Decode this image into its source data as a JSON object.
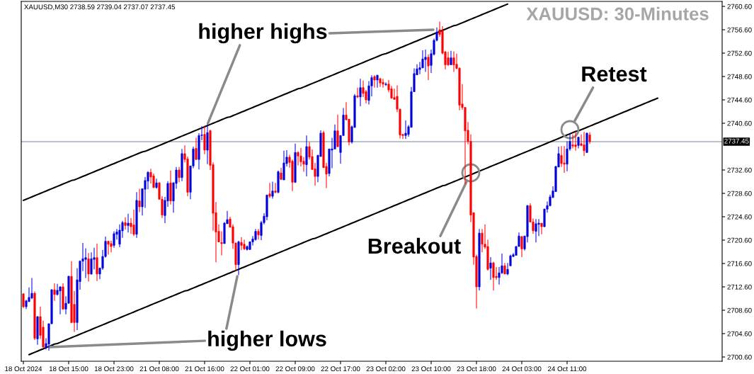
{
  "chart_data": {
    "type": "candlestick",
    "title": "XAUUSD: 30-Minutes",
    "subtitle": "XAUUSD,M30 2738.59 2739.04 2737.07 2737.45",
    "categories": [
      "18 Oct 2024",
      null,
      null,
      null,
      null,
      null,
      null,
      null,
      null,
      null,
      null,
      null,
      null,
      null,
      null,
      null,
      "18 Oct 15:00",
      null,
      null,
      null,
      null,
      null,
      null,
      null,
      null,
      null,
      null,
      null,
      null,
      null,
      null,
      null,
      "18 Oct 23:00",
      null,
      null,
      null,
      null,
      null,
      null,
      null,
      null,
      null,
      null,
      null,
      null,
      null,
      null,
      null,
      "21 Oct 08:00",
      null,
      null,
      null,
      null,
      null,
      null,
      null,
      null,
      null,
      null,
      null,
      null,
      null,
      null,
      null,
      "21 Oct 16:00",
      null,
      null,
      null,
      null,
      null,
      null,
      null,
      null,
      null,
      null,
      null,
      null,
      null,
      null,
      null,
      "22 Oct 01:00",
      null,
      null,
      null,
      null,
      null,
      null,
      null,
      null,
      null,
      null,
      null,
      null,
      null,
      null,
      null,
      "22 Oct 09:00",
      null,
      null,
      null,
      null,
      null,
      null,
      null,
      null,
      null,
      null,
      null,
      null,
      null,
      null,
      null,
      "22 Oct 17:00",
      null,
      null,
      null,
      null,
      null,
      null,
      null,
      null,
      null,
      null,
      null,
      null,
      null,
      null,
      null,
      "23 Oct 02:00",
      null,
      null,
      null,
      null,
      null,
      null,
      null,
      null,
      null,
      null,
      null,
      null,
      null,
      null,
      null,
      "23 Oct 10:00",
      null,
      null,
      null,
      null,
      null,
      null,
      null,
      null,
      null,
      null,
      null,
      null,
      null,
      null,
      null,
      "23 Oct 18:00",
      null,
      null,
      null,
      null,
      null,
      null,
      null,
      null,
      null,
      null,
      null,
      null,
      null,
      null,
      null,
      "24 Oct 03:00",
      null,
      null,
      null,
      null,
      null,
      null,
      null,
      null,
      null,
      null,
      null,
      null,
      null,
      null,
      null,
      "24 Oct 11:00",
      null,
      null,
      null,
      null,
      null,
      null,
      null,
      null,
      null,
      null,
      null,
      null,
      null,
      null,
      null,
      null,
      null,
      null,
      null,
      null,
      null,
      null,
      null,
      null,
      null,
      null,
      null,
      null,
      null,
      null,
      null,
      null
    ],
    "ohlc": [
      [
        2711.4,
        2711.5,
        2709.0,
        2709.2
      ],
      [
        2709.2,
        2710.4,
        2708.8,
        2710.2
      ],
      [
        2710.1,
        2712.5,
        2710.0,
        2710.8
      ],
      [
        2710.7,
        2714.1,
        2710.5,
        2711.5
      ],
      [
        2711.5,
        2711.8,
        2703.5,
        2703.8
      ],
      [
        2703.7,
        2707.6,
        2702.7,
        2707.5
      ],
      [
        2707.5,
        2709.2,
        2703.7,
        2704.3
      ],
      [
        2705.7,
        2706.8,
        2702.2,
        2702.3
      ],
      [
        2702.3,
        2703.8,
        2701.9,
        2702.9
      ],
      [
        2702.8,
        2706.3,
        2701.7,
        2706.3
      ],
      [
        2706.3,
        2712.2,
        2706.2,
        2712.1
      ],
      [
        2712.1,
        2713.2,
        2710.2,
        2711.3
      ],
      [
        2711.3,
        2713.1,
        2711.1,
        2712.0
      ],
      [
        2711.9,
        2712.7,
        2707.9,
        2712.6
      ],
      [
        2712.6,
        2713.2,
        2708.7,
        2708.8
      ],
      [
        2708.8,
        2711.0,
        2707.9,
        2709.8
      ],
      [
        2709.8,
        2714.5,
        2709.7,
        2714.4
      ],
      [
        2714.4,
        2717.0,
        2706.4,
        2706.5
      ],
      [
        2709.6,
        2711.9,
        2704.9,
        2706.5
      ],
      [
        2706.5,
        2715.8,
        2705.2,
        2713.8
      ],
      [
        2713.5,
        2717.1,
        2712.1,
        2717.0
      ],
      [
        2717.0,
        2720.1,
        2715.3,
        2717.4
      ],
      [
        2717.3,
        2719.2,
        2714.1,
        2717.6
      ],
      [
        2717.4,
        2718.4,
        2713.5,
        2714.8
      ],
      [
        2714.8,
        2718.5,
        2714.7,
        2717.4
      ],
      [
        2717.3,
        2719.3,
        2715.6,
        2717.6
      ],
      [
        2717.6,
        2720.0,
        2713.6,
        2714.8
      ],
      [
        2714.8,
        2715.9,
        2713.9,
        2715.8
      ],
      [
        2715.8,
        2718.9,
        2715.5,
        2717.8
      ],
      [
        2717.8,
        2721.2,
        2717.6,
        2720.4
      ],
      [
        2720.4,
        2720.5,
        2718.1,
        2719.9
      ],
      [
        2720.0,
        2720.5,
        2718.5,
        2719.5
      ],
      [
        2719.7,
        2722.1,
        2719.3,
        2721.7
      ],
      [
        2721.6,
        2722.5,
        2720.7,
        2722.0
      ],
      [
        2719.9,
        2723.3,
        2719.4,
        2722.3
      ],
      [
        2722.2,
        2723.9,
        2721.0,
        2723.6
      ],
      [
        2723.6,
        2724.5,
        2722.4,
        2723.1
      ],
      [
        2723.1,
        2725.1,
        2721.9,
        2723.5
      ],
      [
        2723.5,
        2724.4,
        2721.7,
        2722.9
      ],
      [
        2723.2,
        2725.8,
        2721.3,
        2721.6
      ],
      [
        2721.6,
        2728.8,
        2721.0,
        2727.4
      ],
      [
        2727.3,
        2729.4,
        2725.4,
        2726.3
      ],
      [
        2726.3,
        2729.4,
        2724.8,
        2729.4
      ],
      [
        2729.3,
        2731.4,
        2726.1,
        2730.8
      ],
      [
        2730.7,
        2732.4,
        2729.3,
        2732.2
      ],
      [
        2732.2,
        2732.8,
        2730.3,
        2731.4
      ],
      [
        2731.6,
        2732.0,
        2729.5,
        2729.6
      ],
      [
        2729.6,
        2731.1,
        2729.4,
        2730.4
      ],
      [
        2730.4,
        2730.5,
        2727.5,
        2727.6
      ],
      [
        2727.6,
        2728.1,
        2724.4,
        2724.9
      ],
      [
        2724.8,
        2728.0,
        2723.5,
        2727.4
      ],
      [
        2727.3,
        2730.7,
        2726.3,
        2730.3
      ],
      [
        2730.4,
        2732.5,
        2726.7,
        2727.3
      ],
      [
        2727.3,
        2730.5,
        2725.3,
        2730.4
      ],
      [
        2730.3,
        2733.1,
        2729.4,
        2732.6
      ],
      [
        2732.6,
        2733.1,
        2730.5,
        2731.3
      ],
      [
        2731.3,
        2736.2,
        2730.7,
        2735.4
      ],
      [
        2735.4,
        2736.8,
        2733.9,
        2734.4
      ],
      [
        2734.5,
        2734.9,
        2728.1,
        2728.8
      ],
      [
        2728.8,
        2733.3,
        2727.6,
        2733.3
      ],
      [
        2733.3,
        2736.6,
        2732.9,
        2736.2
      ],
      [
        2736.3,
        2738.1,
        2734.3,
        2734.4
      ],
      [
        2734.4,
        2738.9,
        2732.7,
        2738.5
      ],
      [
        2738.5,
        2740.1,
        2737.7,
        2738.6
      ],
      [
        2738.7,
        2740.2,
        2735.3,
        2736.0
      ],
      [
        2736.0,
        2740.4,
        2733.6,
        2739.0
      ],
      [
        2739.3,
        2739.5,
        2732.6,
        2733.4
      ],
      [
        2733.5,
        2733.9,
        2722.2,
        2725.2
      ],
      [
        2725.3,
        2727.1,
        2716.8,
        2722.0
      ],
      [
        2722.1,
        2723.3,
        2720.2,
        2720.3
      ],
      [
        2720.2,
        2722.1,
        2718.0,
        2720.0
      ],
      [
        2720.0,
        2723.7,
        2720.0,
        2723.5
      ],
      [
        2723.4,
        2725.6,
        2723.4,
        2724.1
      ],
      [
        2724.2,
        2724.6,
        2722.8,
        2722.8
      ],
      [
        2722.9,
        2723.3,
        2719.1,
        2720.1
      ],
      [
        2720.1,
        2720.2,
        2715.4,
        2716.4
      ],
      [
        2716.4,
        2720.5,
        2714.6,
        2720.3
      ],
      [
        2720.2,
        2721.1,
        2718.9,
        2719.7
      ],
      [
        2719.9,
        2720.7,
        2718.9,
        2719.1
      ],
      [
        2719.0,
        2719.7,
        2718.8,
        2719.5
      ],
      [
        2719.0,
        2720.4,
        2718.9,
        2720.3
      ],
      [
        2720.3,
        2721.3,
        2719.7,
        2720.8
      ],
      [
        2720.7,
        2722.5,
        2720.5,
        2722.1
      ],
      [
        2722.1,
        2722.5,
        2720.7,
        2721.5
      ],
      [
        2721.4,
        2723.9,
        2720.6,
        2723.6
      ],
      [
        2723.6,
        2725.2,
        2723.3,
        2724.7
      ],
      [
        2724.6,
        2728.4,
        2724.0,
        2728.3
      ],
      [
        2728.5,
        2730.4,
        2727.8,
        2728.1
      ],
      [
        2728.1,
        2730.6,
        2727.7,
        2729.0
      ],
      [
        2729.0,
        2730.4,
        2728.6,
        2728.8
      ],
      [
        2728.8,
        2732.5,
        2728.6,
        2732.3
      ],
      [
        2732.1,
        2733.0,
        2730.9,
        2731.0
      ],
      [
        2730.9,
        2735.9,
        2730.9,
        2733.8
      ],
      [
        2733.7,
        2736.0,
        2733.2,
        2734.8
      ],
      [
        2734.8,
        2735.2,
        2733.0,
        2733.9
      ],
      [
        2734.1,
        2734.4,
        2729.0,
        2730.5
      ],
      [
        2730.5,
        2737.1,
        2730.4,
        2735.6
      ],
      [
        2735.6,
        2735.8,
        2733.4,
        2735.0
      ],
      [
        2735.0,
        2736.4,
        2733.2,
        2734.0
      ],
      [
        2734.1,
        2734.8,
        2732.3,
        2733.6
      ],
      [
        2733.5,
        2738.5,
        2731.5,
        2736.6
      ],
      [
        2736.6,
        2737.4,
        2734.4,
        2734.8
      ],
      [
        2734.9,
        2736.1,
        2732.6,
        2732.7
      ],
      [
        2732.8,
        2733.8,
        2729.9,
        2731.5
      ],
      [
        2731.5,
        2735.2,
        2730.5,
        2735.1
      ],
      [
        2734.9,
        2739.4,
        2734.9,
        2738.9
      ],
      [
        2739.0,
        2739.3,
        2733.0,
        2733.0
      ],
      [
        2733.2,
        2733.8,
        2729.5,
        2731.9
      ],
      [
        2732.0,
        2736.2,
        2731.5,
        2736.2
      ],
      [
        2736.0,
        2738.1,
        2732.9,
        2736.2
      ],
      [
        2736.2,
        2740.4,
        2736.1,
        2739.3
      ],
      [
        2739.3,
        2742.1,
        2736.5,
        2736.6
      ],
      [
        2735.6,
        2738.5,
        2733.7,
        2738.5
      ],
      [
        2738.5,
        2743.2,
        2738.5,
        2742.0
      ],
      [
        2742.0,
        2744.2,
        2741.1,
        2741.2
      ],
      [
        2741.3,
        2741.3,
        2736.8,
        2737.4
      ],
      [
        2737.4,
        2740.2,
        2737.1,
        2740.0
      ],
      [
        2739.9,
        2745.6,
        2739.8,
        2745.3
      ],
      [
        2745.3,
        2746.7,
        2744.9,
        2745.1
      ],
      [
        2745.1,
        2748.2,
        2743.5,
        2746.7
      ],
      [
        2746.7,
        2747.9,
        2745.1,
        2745.7
      ],
      [
        2746.0,
        2746.3,
        2744.0,
        2744.6
      ],
      [
        2744.5,
        2747.8,
        2743.8,
        2747.0
      ],
      [
        2747.0,
        2748.8,
        2745.2,
        2748.4
      ],
      [
        2748.6,
        2748.8,
        2746.7,
        2748.0
      ],
      [
        2748.0,
        2748.9,
        2746.7,
        2748.8
      ],
      [
        2748.2,
        2748.4,
        2746.8,
        2747.5
      ],
      [
        2747.6,
        2748.2,
        2746.7,
        2747.3
      ],
      [
        2747.2,
        2747.6,
        2747.0,
        2747.3
      ],
      [
        2747.3,
        2748.0,
        2745.9,
        2746.3
      ],
      [
        2746.5,
        2747.0,
        2744.8,
        2744.9
      ],
      [
        2745.0,
        2746.5,
        2744.6,
        2744.7
      ],
      [
        2745.2,
        2747.1,
        2742.5,
        2743.0
      ],
      [
        2743.0,
        2743.1,
        2738.0,
        2738.6
      ],
      [
        2738.7,
        2738.7,
        2737.9,
        2738.5
      ],
      [
        2738.5,
        2741.1,
        2737.9,
        2738.9
      ],
      [
        2738.7,
        2740.3,
        2738.3,
        2740.0
      ],
      [
        2739.9,
        2746.8,
        2739.9,
        2746.0
      ],
      [
        2746.0,
        2750.0,
        2746.0,
        2749.1
      ],
      [
        2748.9,
        2750.7,
        2748.8,
        2749.9
      ],
      [
        2749.8,
        2751.1,
        2749.0,
        2750.1
      ],
      [
        2750.1,
        2753.1,
        2750.0,
        2751.6
      ],
      [
        2751.5,
        2753.2,
        2749.4,
        2751.9
      ],
      [
        2751.9,
        2752.4,
        2748.0,
        2750.4
      ],
      [
        2750.5,
        2753.2,
        2749.2,
        2752.5
      ],
      [
        2752.4,
        2755.1,
        2752.2,
        2754.8
      ],
      [
        2754.8,
        2757.0,
        2754.6,
        2756.2
      ],
      [
        2756.6,
        2758.0,
        2755.4,
        2755.8
      ],
      [
        2756.4,
        2757.2,
        2752.4,
        2752.6
      ],
      [
        2752.8,
        2753.0,
        2749.8,
        2750.6
      ],
      [
        2751.8,
        2752.8,
        2750.4,
        2750.6
      ],
      [
        2750.6,
        2753.0,
        2750.6,
        2751.8
      ],
      [
        2751.8,
        2752.9,
        2749.4,
        2750.6
      ],
      [
        2750.7,
        2752.5,
        2749.8,
        2750.0
      ],
      [
        2750.0,
        2750.2,
        2742.8,
        2743.7
      ],
      [
        2743.9,
        2747.3,
        2742.9,
        2743.3
      ],
      [
        2743.3,
        2743.4,
        2730.2,
        2739.3
      ],
      [
        2739.4,
        2740.8,
        2737.0,
        2737.5
      ],
      [
        2737.5,
        2738.7,
        2723.7,
        2724.9
      ],
      [
        2725.3,
        2725.3,
        2716.4,
        2717.7
      ],
      [
        2717.8,
        2718.1,
        2708.9,
        2712.6
      ],
      [
        2712.6,
        2722.5,
        2712.0,
        2721.8
      ],
      [
        2721.8,
        2722.5,
        2718.5,
        2719.9
      ],
      [
        2719.9,
        2723.3,
        2719.1,
        2719.4
      ],
      [
        2719.5,
        2720.7,
        2715.4,
        2715.6
      ],
      [
        2715.8,
        2717.7,
        2713.8,
        2716.7
      ],
      [
        2716.7,
        2716.9,
        2712.0,
        2714.2
      ],
      [
        2714.4,
        2716.0,
        2713.8,
        2714.2
      ],
      [
        2714.2,
        2716.0,
        2713.0,
        2715.0
      ],
      [
        2715.0,
        2718.3,
        2714.8,
        2716.2
      ],
      [
        2716.2,
        2716.7,
        2714.8,
        2714.8
      ],
      [
        2714.8,
        2716.7,
        2714.6,
        2715.6
      ],
      [
        2716.2,
        2718.1,
        2716.2,
        2717.9
      ],
      [
        2717.8,
        2718.4,
        2717.7,
        2718.1
      ],
      [
        2718.0,
        2719.6,
        2718.0,
        2719.5
      ],
      [
        2719.5,
        2721.9,
        2719.5,
        2721.3
      ],
      [
        2721.2,
        2721.3,
        2717.7,
        2719.1
      ],
      [
        2719.1,
        2721.3,
        2718.8,
        2721.3
      ],
      [
        2721.2,
        2726.6,
        2720.2,
        2726.5
      ],
      [
        2726.5,
        2726.9,
        2723.7,
        2723.7
      ],
      [
        2723.7,
        2724.3,
        2721.7,
        2722.2
      ],
      [
        2722.1,
        2724.2,
        2720.2,
        2723.4
      ],
      [
        2723.3,
        2724.2,
        2721.3,
        2723.5
      ],
      [
        2723.5,
        2723.5,
        2721.6,
        2722.9
      ],
      [
        2722.9,
        2726.0,
        2722.8,
        2725.9
      ],
      [
        2725.9,
        2727.2,
        2725.3,
        2726.5
      ],
      [
        2726.5,
        2728.4,
        2726.4,
        2728.0
      ],
      [
        2727.9,
        2729.8,
        2727.8,
        2729.0
      ],
      [
        2728.9,
        2733.3,
        2728.9,
        2733.2
      ],
      [
        2733.1,
        2736.6,
        2733.1,
        2735.4
      ],
      [
        2735.1,
        2736.7,
        2733.1,
        2733.7
      ],
      [
        2733.8,
        2736.7,
        2732.1,
        2733.6
      ],
      [
        2733.6,
        2737.5,
        2732.4,
        2736.2
      ],
      [
        2736.2,
        2738.7,
        2735.9,
        2737.5
      ],
      [
        2736.9,
        2738.7,
        2736.3,
        2736.7
      ],
      [
        2736.9,
        2739.2,
        2735.9,
        2736.6
      ],
      [
        2736.8,
        2738.3,
        2736.3,
        2738.2
      ],
      [
        2737.1,
        2738.7,
        2736.7,
        2736.8
      ],
      [
        2736.9,
        2739.1,
        2735.0,
        2735.9
      ],
      [
        2735.6,
        2739.0,
        2735.5,
        2738.9
      ],
      [
        2738.59,
        2739.04,
        2737.07,
        2737.45
      ],
      null,
      null,
      null,
      null,
      null,
      null,
      null,
      null,
      null,
      null,
      null,
      null,
      null,
      null,
      null,
      null,
      null,
      null,
      null,
      null,
      null,
      null,
      null,
      null
    ],
    "colors": [
      "#ff0000",
      "#0000dd",
      "#0000dd",
      "#0000dd",
      "#ff0000",
      "#0000dd",
      "#ff0000",
      "#ff0000",
      "#0000dd",
      "#0000dd",
      "#0000dd",
      "#ff0000",
      "#0000dd",
      "#0000dd",
      "#ff0000",
      "#0000dd",
      "#0000dd",
      "#ff0000",
      "#ff0000",
      "#0000dd",
      "#0000dd",
      "#0000dd",
      "#0000dd",
      "#ff0000",
      "#0000dd",
      "#0000dd",
      "#ff0000",
      "#0000dd",
      "#0000dd",
      "#0000dd",
      "#ff0000",
      "#ff0000",
      "#0000dd",
      "#0000dd",
      "#0000dd",
      "#0000dd",
      "#ff0000",
      "#0000dd",
      "#ff0000",
      "#ff0000",
      "#0000dd",
      "#ff0000",
      "#0000dd",
      "#0000dd",
      "#0000dd",
      "#ff0000",
      "#ff0000",
      "#0000dd",
      "#ff0000",
      "#ff0000",
      "#0000dd",
      "#0000dd",
      "#ff0000",
      "#0000dd",
      "#0000dd",
      "#ff0000",
      "#0000dd",
      "#ff0000",
      "#ff0000",
      "#0000dd",
      "#0000dd",
      "#ff0000",
      "#0000dd",
      "#0000dd",
      "#ff0000",
      "#0000dd",
      "#ff0000",
      "#ff0000",
      "#ff0000",
      "#ff0000",
      "#ff0000",
      "#0000dd",
      "#0000dd",
      "#ff0000",
      "#ff0000",
      "#ff0000",
      "#0000dd",
      "#ff0000",
      "#ff0000",
      "#0000dd",
      "#0000dd",
      "#0000dd",
      "#0000dd",
      "#ff0000",
      "#0000dd",
      "#0000dd",
      "#0000dd",
      "#ff0000",
      "#0000dd",
      "#ff0000",
      "#0000dd",
      "#ff0000",
      "#0000dd",
      "#0000dd",
      "#ff0000",
      "#ff0000",
      "#0000dd",
      "#ff0000",
      "#ff0000",
      "#ff0000",
      "#0000dd",
      "#ff0000",
      "#ff0000",
      "#ff0000",
      "#0000dd",
      "#0000dd",
      "#ff0000",
      "#ff0000",
      "#0000dd",
      "#0000dd",
      "#0000dd",
      "#ff0000",
      "#0000dd",
      "#0000dd",
      "#ff0000",
      "#ff0000",
      "#0000dd",
      "#0000dd",
      "#ff0000",
      "#0000dd",
      "#ff0000",
      "#ff0000",
      "#0000dd",
      "#0000dd",
      "#ff0000",
      "#0000dd",
      "#ff0000",
      "#ff0000",
      "#0000dd",
      "#ff0000",
      "#ff0000",
      "#ff0000",
      "#ff0000",
      "#ff0000",
      "#ff0000",
      "#0000dd",
      "#0000dd",
      "#0000dd",
      "#0000dd",
      "#0000dd",
      "#0000dd",
      "#0000dd",
      "#0000dd",
      "#ff0000",
      "#0000dd",
      "#0000dd",
      "#0000dd",
      "#ff0000",
      "#ff0000",
      "#ff0000",
      "#ff0000",
      "#0000dd",
      "#ff0000",
      "#ff0000",
      "#ff0000",
      "#ff0000",
      "#ff0000",
      "#ff0000",
      "#ff0000",
      "#ff0000",
      "#ff0000",
      "#0000dd",
      "#ff0000",
      "#ff0000",
      "#ff0000",
      "#0000dd",
      "#ff0000",
      "#ff0000",
      "#0000dd",
      "#0000dd",
      "#ff0000",
      "#0000dd",
      "#0000dd",
      "#0000dd",
      "#0000dd",
      "#0000dd",
      "#ff0000",
      "#0000dd",
      "#0000dd",
      "#ff0000",
      "#ff0000",
      "#0000dd",
      "#0000dd",
      "#ff0000",
      "#0000dd",
      "#0000dd",
      "#0000dd",
      "#0000dd",
      "#0000dd",
      "#0000dd",
      "#ff0000",
      "#ff0000",
      "#0000dd",
      "#0000dd",
      "#ff0000",
      "#ff0000",
      "#0000dd",
      "#ff0000",
      "#ff0000",
      "#0000dd",
      "#ff0000",
      null,
      null,
      null,
      null,
      null,
      null,
      null,
      null,
      null,
      null,
      null,
      null,
      null,
      null,
      null,
      null,
      null,
      null,
      null,
      null,
      null,
      null,
      null,
      null
    ],
    "series": [
      {
        "type": "line",
        "color": "#000000",
        "values": [
          2727.4,
          2727.6,
          2727.8,
          2728.0,
          2728.2,
          2728.4,
          2728.6,
          2728.8,
          2729.0,
          2729.2,
          2729.4,
          2729.6,
          2729.8,
          2730.0,
          2730.2,
          2730.4,
          2730.6,
          2730.8,
          2730.9,
          2731.1,
          2731.3,
          2731.5,
          2731.7,
          2731.9,
          2732.1,
          2732.3,
          2732.5,
          2732.7,
          2732.9,
          2733.1,
          2733.3,
          2733.5,
          2733.7,
          2733.9,
          2734.1,
          2734.3,
          2734.5,
          2734.7,
          2734.9,
          2735.1,
          2735.3,
          2735.5,
          2735.7,
          2735.8,
          2736.0,
          2736.2,
          2736.4,
          2736.6,
          2736.8,
          2737.0,
          2737.2,
          2737.4,
          2737.6,
          2737.8,
          2738.0,
          2738.2,
          2738.4,
          2738.6,
          2738.8,
          2739.0,
          2739.2,
          2739.4,
          2739.6,
          2739.8,
          2740.0,
          2740.2,
          2740.4,
          2740.6,
          2740.8,
          2741.0,
          2741.2,
          2741.4,
          2741.6,
          2741.7,
          2741.9,
          2742.1,
          2742.3,
          2742.5,
          2742.7,
          2742.9,
          2743.1,
          2743.3,
          2743.5,
          2743.7,
          2743.9,
          2744.1,
          2744.3,
          2744.5,
          2744.7,
          2744.9,
          2745.1,
          2745.3,
          2745.5,
          2745.7,
          2745.9,
          2746.1,
          2746.3,
          2746.5,
          2746.6,
          2746.8,
          2747.0,
          2747.2,
          2747.4,
          2747.6,
          2747.8,
          2748.0,
          2748.2,
          2748.4,
          2748.6,
          2748.8,
          2749.0,
          2749.2,
          2749.4,
          2749.6,
          2749.8,
          2750.0,
          2750.2,
          2750.4,
          2750.6,
          2750.8,
          2751.0,
          2751.2,
          2751.4,
          2751.6,
          2751.8,
          2752.0,
          2752.2,
          2752.4,
          2752.5,
          2752.7,
          2752.9,
          2753.1,
          2753.3,
          2753.5,
          2753.7,
          2753.9,
          2754.1,
          2754.3,
          2754.5,
          2754.7,
          2754.9,
          2755.1,
          2755.3,
          2755.5,
          2755.7,
          2755.9,
          2756.1,
          2756.3,
          2756.5,
          2756.7,
          2756.9,
          2757.1,
          2757.3,
          2757.4,
          2757.6,
          2757.8,
          2758.0,
          2758.2,
          2758.4,
          2758.6,
          2758.8,
          2759.0,
          2759.2,
          2759.4,
          2759.6,
          2759.8,
          2760.0,
          2760.2,
          2760.4,
          2760.6,
          2760.8,
          2761.0,
          null,
          null,
          null,
          null,
          null,
          null,
          null,
          null,
          null,
          null,
          null,
          null,
          null,
          null,
          null,
          null,
          null,
          null,
          null,
          null,
          null,
          null,
          null,
          null,
          null,
          null,
          null,
          null,
          null,
          null,
          null,
          null,
          null,
          null,
          null,
          null,
          null,
          null,
          null,
          null,
          null,
          null,
          null,
          null,
          null,
          null,
          null,
          null,
          null,
          null,
          null,
          null,
          null
        ]
      },
      {
        "type": "line",
        "color": "#000000",
        "values": [
          null,
          null,
          2701.0,
          2701.2,
          2701.4,
          2701.6,
          2701.8,
          2702.0,
          2702.2,
          2702.4,
          2702.6,
          2702.8,
          2702.9,
          2703.1,
          2703.3,
          2703.5,
          2703.7,
          2703.9,
          2704.1,
          2704.3,
          2704.5,
          2704.7,
          2704.9,
          2705.1,
          2705.3,
          2705.5,
          2705.7,
          2705.9,
          2706.1,
          2706.3,
          2706.5,
          2706.7,
          2706.9,
          2707.1,
          2707.3,
          2707.5,
          2707.7,
          2707.9,
          2708.1,
          2708.3,
          2708.5,
          2708.7,
          2708.9,
          2709.1,
          2709.3,
          2709.5,
          2709.7,
          2709.9,
          2710.1,
          2710.3,
          2710.5,
          2710.7,
          2710.9,
          2711.1,
          2711.3,
          2711.5,
          2711.7,
          2711.9,
          2712.0,
          2712.2,
          2712.4,
          2712.6,
          2712.8,
          2713.0,
          2713.2,
          2713.4,
          2713.6,
          2713.8,
          2714.0,
          2714.2,
          2714.4,
          2714.6,
          2714.8,
          2715.0,
          2715.2,
          2715.4,
          2715.6,
          2715.8,
          2716.0,
          2716.2,
          2716.4,
          2716.6,
          2716.8,
          2717.0,
          2717.2,
          2717.4,
          2717.6,
          2717.8,
          2718.0,
          2718.2,
          2718.4,
          2718.6,
          2718.8,
          2719.0,
          2719.2,
          2719.4,
          2719.6,
          2719.8,
          2720.0,
          2720.2,
          2720.4,
          2720.6,
          2720.8,
          2720.9,
          2721.1,
          2721.3,
          2721.5,
          2721.7,
          2721.9,
          2722.1,
          2722.3,
          2722.5,
          2722.7,
          2722.9,
          2723.1,
          2723.3,
          2723.5,
          2723.7,
          2723.9,
          2724.1,
          2724.3,
          2724.5,
          2724.7,
          2724.9,
          2725.1,
          2725.3,
          2725.5,
          2725.7,
          2725.9,
          2726.1,
          2726.3,
          2726.5,
          2726.7,
          2726.9,
          2727.1,
          2727.3,
          2727.5,
          2727.7,
          2727.9,
          2728.1,
          2728.3,
          2728.5,
          2728.7,
          2728.9,
          2729.1,
          2729.3,
          2729.5,
          2729.7,
          2729.9,
          2730.0,
          2730.2,
          2730.4,
          2730.6,
          2730.8,
          2731.0,
          2731.2,
          2731.4,
          2731.6,
          2731.8,
          2732.0,
          2732.2,
          2732.4,
          2732.6,
          2732.8,
          2733.0,
          2733.2,
          2733.4,
          2733.6,
          2733.8,
          2734.0,
          2734.2,
          2734.4,
          2734.6,
          2734.8,
          2735.0,
          2735.2,
          2735.4,
          2735.6,
          2735.8,
          2736.0,
          2736.2,
          2736.4,
          2736.6,
          2736.8,
          2737.0,
          2737.2,
          2737.4,
          2737.6,
          2737.8,
          2738.0,
          2738.2,
          2738.4,
          2738.6,
          2738.8,
          2739.0,
          2739.2,
          2739.3,
          2739.5,
          2739.7,
          2739.9,
          2740.1,
          2740.3,
          2740.5,
          2740.7,
          2740.9,
          2741.1,
          2741.3,
          2741.5,
          2741.7,
          2741.9,
          2742.1,
          2742.3,
          2742.5,
          2742.7,
          2742.9,
          2743.1,
          2743.3,
          2743.5,
          2743.7,
          2743.9,
          2744.1,
          2744.3,
          2744.5,
          2744.7,
          2744.9
        ]
      }
    ],
    "ylim": [
      2699.87,
      2761.45
    ],
    "yticks": [
      {
        "value": 2700.6,
        "label": "2700.60"
      },
      {
        "value": 2704.6,
        "label": "2704.60"
      },
      {
        "value": 2708.6,
        "label": "2708.60"
      },
      {
        "value": 2712.6,
        "label": "2712.60"
      },
      {
        "value": 2716.6,
        "label": "2716.60"
      },
      {
        "value": 2720.6,
        "label": "2720.60"
      },
      {
        "value": 2724.6,
        "label": "2724.60"
      },
      {
        "value": 2728.6,
        "label": "2728.60"
      },
      {
        "value": 2732.6,
        "label": "2732.60"
      },
      {
        "value": 2740.6,
        "label": "2740.60"
      },
      {
        "value": 2744.6,
        "label": "2744.60"
      },
      {
        "value": 2748.6,
        "label": "2748.60"
      },
      {
        "value": 2752.6,
        "label": "2752.60"
      },
      {
        "value": 2756.6,
        "label": "2756.60"
      },
      {
        "value": 2760.6,
        "label": "2760.60"
      }
    ],
    "ref_lines": [
      {
        "axis": "y",
        "value": 2737.45,
        "label": "2737.45",
        "color": "#778899"
      }
    ],
    "annotations": [
      "higher highs",
      "higher lows",
      "Breakout",
      "Retest"
    ],
    "grid": false
  }
}
